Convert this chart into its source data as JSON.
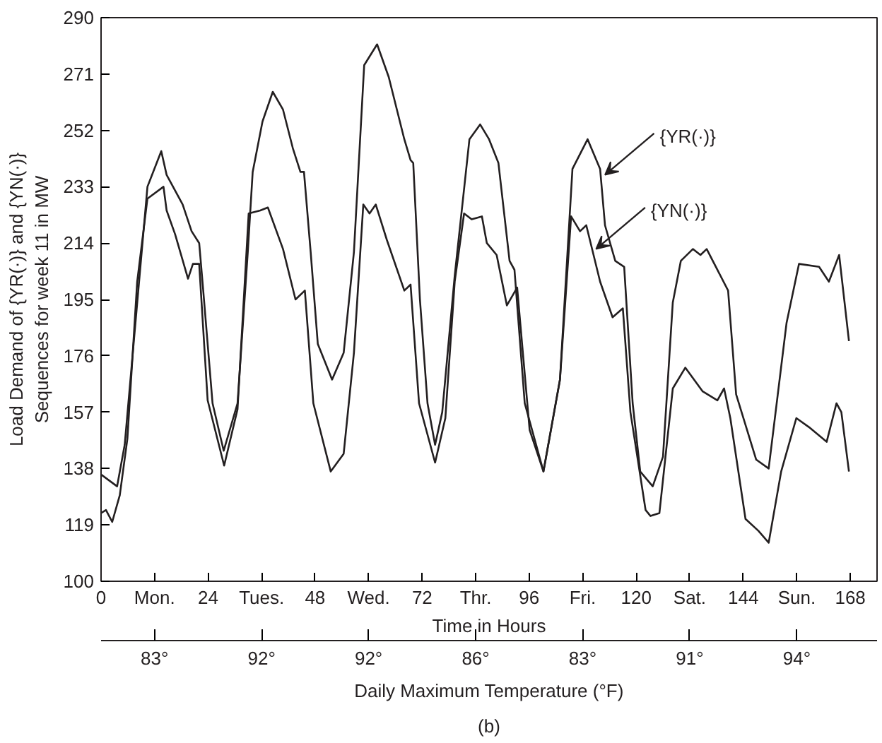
{
  "chart_data": {
    "type": "line",
    "xlabel": "Time in Hours",
    "ylabel": "Load Demand of {YR(·)} and {YN(·)}\nSequences for week 11 in MW",
    "x2label": "Daily Maximum Temperature (°F)",
    "xlim": [
      0,
      174
    ],
    "ylim": [
      100,
      290
    ],
    "xticks": [
      {
        "value": 0,
        "label": "0"
      },
      {
        "value": 12,
        "label": "Mon."
      },
      {
        "value": 24,
        "label": "24"
      },
      {
        "value": 36,
        "label": "Tues."
      },
      {
        "value": 48,
        "label": "48"
      },
      {
        "value": 60,
        "label": "Wed."
      },
      {
        "value": 72,
        "label": "72"
      },
      {
        "value": 84,
        "label": "Thr."
      },
      {
        "value": 96,
        "label": "96"
      },
      {
        "value": 108,
        "label": "Fri."
      },
      {
        "value": 120,
        "label": "120"
      },
      {
        "value": 132,
        "label": "Sat."
      },
      {
        "value": 144,
        "label": "144"
      },
      {
        "value": 156,
        "label": "Sun."
      },
      {
        "value": 168,
        "label": "168"
      }
    ],
    "yticks": [
      100,
      119,
      138,
      157,
      176,
      195,
      214,
      233,
      252,
      271,
      290
    ],
    "grid": false,
    "line_style": "solid",
    "series": [
      {
        "color": "#231f20",
        "x": [
          0,
          3.6,
          5.3,
          10.4,
          13.5,
          14.7,
          18.3,
          20.3,
          22,
          22.8,
          25,
          27.5,
          30.6,
          32.9,
          34,
          36.2,
          38.5,
          40.8,
          43,
          44.7,
          45.5,
          47,
          48.6,
          51.8,
          54.4,
          56.7,
          59,
          61.9,
          64.5,
          68,
          69.4,
          70,
          71.5,
          73.2,
          74.9,
          76.5,
          79.3,
          82.6,
          85,
          87,
          89.1,
          91.6,
          92.7,
          95,
          99.2,
          102.9,
          105.7,
          109.1,
          111.9,
          113,
          115.3,
          117.3,
          119.2,
          120.9,
          123.7,
          126,
          128.2,
          130,
          132.7,
          134.4,
          135.8,
          140.6,
          142.4,
          146.9,
          149.7,
          153.7,
          156.5,
          161,
          163.2,
          165.5,
          167.7
        ],
        "values": [
          136,
          132,
          146,
          233,
          245,
          237,
          227,
          218,
          214,
          200,
          160,
          144,
          160,
          211,
          238,
          255,
          265,
          259,
          246,
          238,
          238,
          211,
          180,
          168,
          177,
          211,
          274,
          281,
          270,
          249,
          242,
          241,
          195,
          160,
          146,
          157,
          203,
          249,
          254,
          249,
          241,
          208,
          205,
          160,
          137,
          168,
          239,
          249,
          239,
          220,
          208,
          206,
          160,
          137,
          132,
          142,
          194,
          208,
          212,
          210,
          212,
          198,
          163,
          141,
          138,
          187,
          207,
          206,
          201,
          210,
          181
        ]
      },
      {
        "color": "#231f20",
        "x": [
          0,
          1.1,
          2.5,
          4.2,
          5.9,
          8.1,
          10.4,
          14,
          14.7,
          16.6,
          19.5,
          20.6,
          22,
          23.9,
          27.6,
          30.6,
          33.1,
          35.7,
          37.4,
          40.8,
          43.6,
          45.7,
          47.6,
          51.5,
          54.4,
          56.7,
          58.8,
          60.2,
          61.6,
          64.1,
          68,
          69.4,
          71.3,
          74.9,
          77.2,
          79.3,
          81.4,
          83.1,
          85.4,
          86.5,
          88.7,
          91,
          93.3,
          96.1,
          99.2,
          102.9,
          105.4,
          107.4,
          108.8,
          111.9,
          114.7,
          117,
          118.7,
          122.1,
          123.2,
          125.2,
          128.2,
          131,
          134.9,
          138.2,
          139.7,
          141.1,
          144.5,
          147.4,
          149.7,
          152.5,
          155.9,
          158.7,
          162.7,
          164.9,
          166,
          167.7
        ],
        "values": [
          123,
          124,
          120,
          129,
          148,
          201,
          229,
          233,
          225,
          217,
          202,
          207,
          207,
          161,
          139,
          158,
          224,
          225,
          226,
          212,
          195,
          198,
          160,
          137,
          143,
          177,
          227,
          224,
          227,
          215,
          198,
          200,
          160,
          140,
          155,
          201,
          224,
          222,
          223,
          214,
          210,
          193,
          199,
          151,
          137,
          168,
          223,
          218,
          220,
          201,
          189,
          192,
          157,
          124,
          122,
          123,
          165,
          172,
          164,
          161,
          165,
          155,
          121,
          117,
          113,
          137,
          155,
          152,
          147,
          160,
          157,
          137
        ]
      }
    ],
    "annotations": [
      {
        "text": "{YR(·)}",
        "x": 113,
        "y": 237
      },
      {
        "text": "{YN(·)}",
        "x": 111,
        "y": 212
      },
      "83°",
      "92°",
      "92°",
      "86°",
      "83°",
      "91°",
      "94°",
      "(b)"
    ]
  }
}
